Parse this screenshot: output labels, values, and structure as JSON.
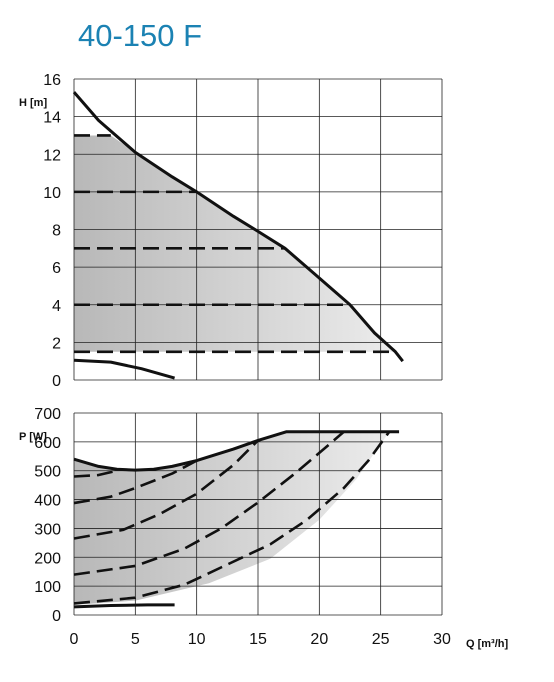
{
  "title": "40-150 F",
  "chart_data": [
    {
      "type": "line",
      "ylabel": "H [m]",
      "xlim": [
        0,
        30
      ],
      "ylim": [
        0,
        16
      ],
      "xticks": [
        0,
        5,
        10,
        15,
        20,
        25,
        30
      ],
      "yticks": [
        0,
        2,
        4,
        6,
        8,
        10,
        12,
        14,
        16
      ],
      "grid": true,
      "shaded_region": [
        [
          0,
          13
        ],
        [
          3,
          13
        ],
        [
          5,
          12.1
        ],
        [
          10,
          10
        ],
        [
          15,
          7.9
        ],
        [
          17.2,
          7
        ],
        [
          22.5,
          4
        ],
        [
          26.2,
          1.5
        ],
        [
          0,
          1.5
        ]
      ],
      "series": [
        {
          "style": "solid",
          "points": [
            [
              0,
              15.3
            ],
            [
              2,
              13.8
            ],
            [
              5,
              12.1
            ],
            [
              8,
              10.8
            ],
            [
              10,
              10.0
            ],
            [
              13,
              8.7
            ],
            [
              15,
              7.9
            ],
            [
              17.2,
              7.0
            ],
            [
              19.5,
              5.7
            ],
            [
              22.5,
              4.0
            ],
            [
              24.5,
              2.5
            ],
            [
              26.2,
              1.5
            ],
            [
              26.8,
              1.0
            ]
          ]
        },
        {
          "style": "solid",
          "points": [
            [
              0,
              1.05
            ],
            [
              3,
              0.95
            ],
            [
              5.5,
              0.6
            ],
            [
              8.2,
              0.1
            ]
          ]
        },
        {
          "style": "dashed",
          "points": [
            [
              0,
              13.0
            ],
            [
              3,
              13.0
            ]
          ]
        },
        {
          "style": "dashed",
          "points": [
            [
              0,
              10.0
            ],
            [
              10,
              10.0
            ]
          ]
        },
        {
          "style": "dashed",
          "points": [
            [
              0,
              7.0
            ],
            [
              17.2,
              7.0
            ]
          ]
        },
        {
          "style": "dashed",
          "points": [
            [
              0,
              4.0
            ],
            [
              22.5,
              4.0
            ]
          ]
        },
        {
          "style": "dashed",
          "points": [
            [
              0,
              1.5
            ],
            [
              26.2,
              1.5
            ]
          ]
        }
      ]
    },
    {
      "type": "line",
      "xlabel": "Q [m³/h]",
      "ylabel": "P [W]",
      "xlim": [
        0,
        30
      ],
      "ylim": [
        0,
        700
      ],
      "xticks": [
        0,
        5,
        10,
        15,
        20,
        25,
        30
      ],
      "yticks": [
        0,
        100,
        200,
        300,
        400,
        500,
        600,
        700
      ],
      "grid": true,
      "shaded_region": [
        [
          0,
          540
        ],
        [
          3,
          505
        ],
        [
          5,
          502
        ],
        [
          8,
          515
        ],
        [
          10,
          535
        ],
        [
          13,
          575
        ],
        [
          15,
          605
        ],
        [
          17.3,
          635
        ],
        [
          25.7,
          635
        ],
        [
          23,
          470
        ],
        [
          20,
          330
        ],
        [
          16,
          195
        ],
        [
          11,
          110
        ],
        [
          5,
          50
        ],
        [
          0,
          35
        ]
      ],
      "series": [
        {
          "style": "solid",
          "points": [
            [
              0,
              540
            ],
            [
              2,
              515
            ],
            [
              3.5,
              505
            ],
            [
              5,
              502
            ],
            [
              6.5,
              505
            ],
            [
              8,
              515
            ],
            [
              10,
              535
            ],
            [
              13,
              575
            ],
            [
              15,
              605
            ],
            [
              17.3,
              635
            ],
            [
              26.5,
              635
            ]
          ]
        },
        {
          "style": "solid",
          "points": [
            [
              0,
              28
            ],
            [
              3,
              33
            ],
            [
              6,
              35
            ],
            [
              8.2,
              35
            ]
          ]
        },
        {
          "style": "dashed",
          "points": [
            [
              0,
              480
            ],
            [
              2,
              485
            ],
            [
              3.5,
              500
            ]
          ]
        },
        {
          "style": "dashed",
          "points": [
            [
              0,
              388
            ],
            [
              3,
              410
            ],
            [
              5,
              440
            ],
            [
              8,
              490
            ],
            [
              10,
              535
            ]
          ]
        },
        {
          "style": "dashed",
          "points": [
            [
              0,
              265
            ],
            [
              4,
              295
            ],
            [
              7,
              350
            ],
            [
              10,
              420
            ],
            [
              13,
              520
            ],
            [
              15,
              605
            ]
          ]
        },
        {
          "style": "dashed",
          "points": [
            [
              0,
              140
            ],
            [
              5,
              170
            ],
            [
              9,
              230
            ],
            [
              12,
              300
            ],
            [
              15,
              390
            ],
            [
              18,
              490
            ],
            [
              20.5,
              580
            ],
            [
              22,
              635
            ]
          ]
        },
        {
          "style": "dashed",
          "points": [
            [
              0,
              40
            ],
            [
              5,
              60
            ],
            [
              9,
              105
            ],
            [
              12,
              165
            ],
            [
              16,
              245
            ],
            [
              19,
              330
            ],
            [
              22,
              440
            ],
            [
              24,
              535
            ],
            [
              25.7,
              635
            ]
          ]
        }
      ]
    }
  ]
}
